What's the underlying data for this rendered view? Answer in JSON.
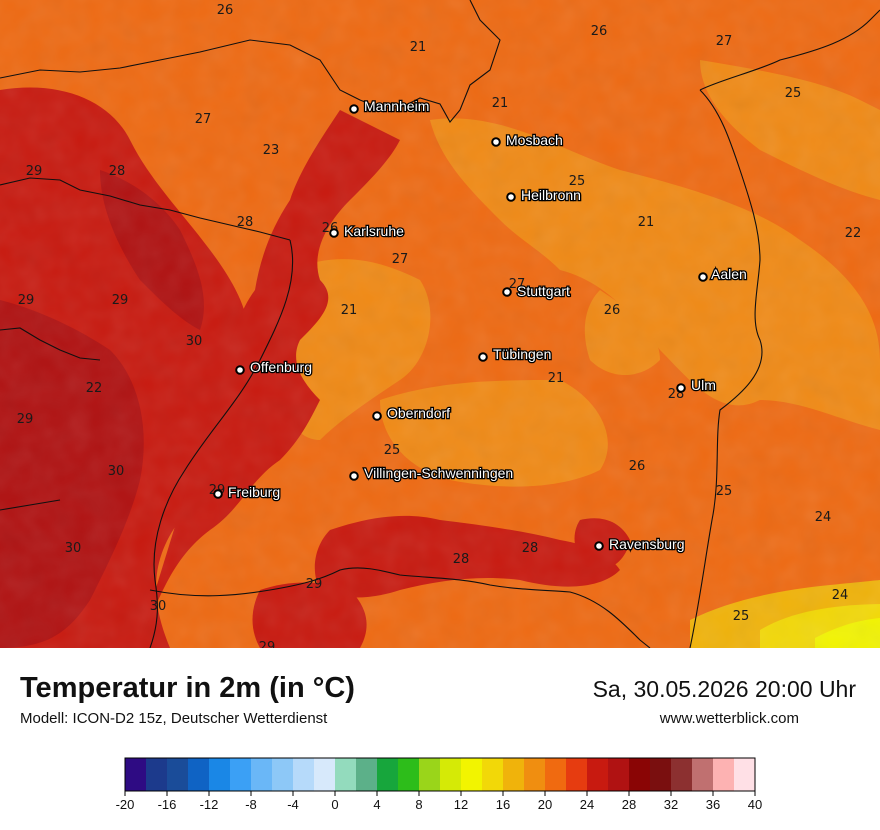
{
  "header": {
    "title": "Temperatur in 2m (in °C)",
    "model": "Modell: ICON-D2 15z, Deutscher Wetterdienst",
    "datetime": "Sa, 30.05.2026 20:00 Uhr",
    "website": "www.wetterblick.com"
  },
  "cities": [
    {
      "name": "Mannheim"
    },
    {
      "name": "Mosbach"
    },
    {
      "name": "Heilbronn"
    },
    {
      "name": "Karlsruhe"
    },
    {
      "name": "Aalen"
    },
    {
      "name": "Stuttgart"
    },
    {
      "name": "Tübingen"
    },
    {
      "name": "Offenburg"
    },
    {
      "name": "Ulm"
    },
    {
      "name": "Oberndorf"
    },
    {
      "name": "Villingen-Schwenningen"
    },
    {
      "name": "Freiburg"
    },
    {
      "name": "Ravensburg"
    }
  ],
  "temperature_labels": [
    "26",
    "21",
    "26",
    "27",
    "25",
    "27",
    "23",
    "29",
    "28",
    "21",
    "25",
    "28",
    "26",
    "21",
    "22",
    "27",
    "27",
    "29",
    "29",
    "21",
    "26",
    "30",
    "22",
    "21",
    "29",
    "28",
    "25",
    "30",
    "26",
    "25",
    "29",
    "24",
    "30",
    "28",
    "28",
    "24",
    "29",
    "30",
    "25",
    "29"
  ],
  "legend": {
    "ticks": [
      "-20",
      "-16",
      "-12",
      "-8",
      "-4",
      "0",
      "4",
      "8",
      "12",
      "16",
      "20",
      "24",
      "28",
      "32",
      "36",
      "40"
    ],
    "colors": [
      "#2e0b83",
      "#1c3a8c",
      "#1a4c99",
      "#0f63c4",
      "#1a87e6",
      "#3ba0f5",
      "#6ab7f7",
      "#8dc8f7",
      "#b6dafa",
      "#d7e9fb",
      "#93dbbd",
      "#5cb089",
      "#17a63c",
      "#2dbd1a",
      "#9ad51a",
      "#d5ea06",
      "#f2f400",
      "#f2d808",
      "#f0b30b",
      "#f08e10",
      "#f06a10",
      "#e63c10",
      "#c81a10",
      "#b01212",
      "#8a0505",
      "#7a0f0f",
      "#8c3030",
      "#c07070",
      "#fdb2b2",
      "#ffe0e6"
    ]
  }
}
